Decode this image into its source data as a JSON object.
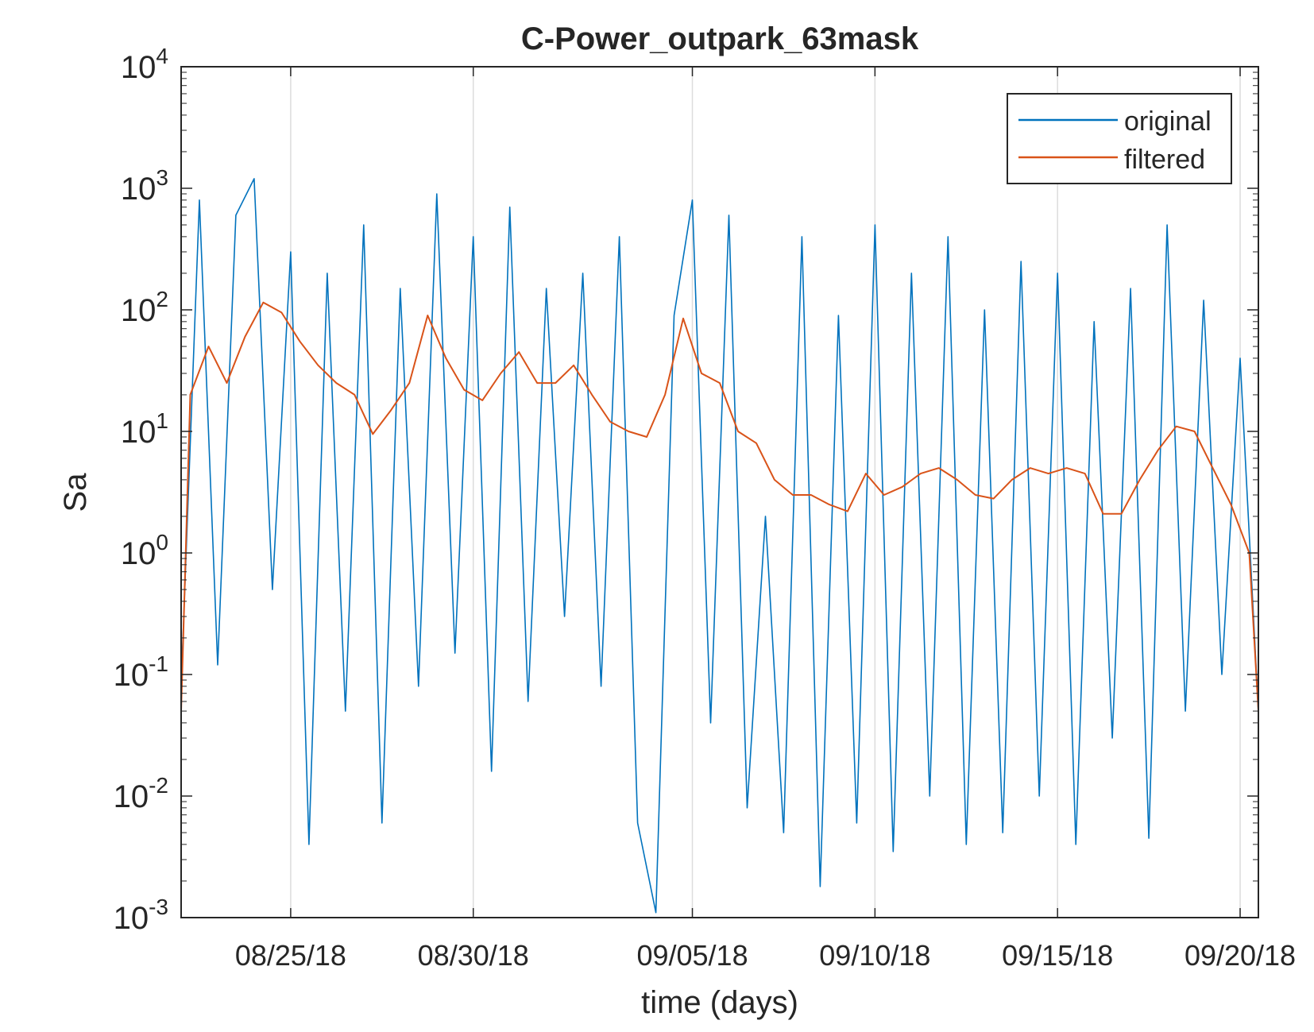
{
  "chart_data": {
    "type": "line",
    "title": "C-Power_outpark_63mask",
    "xlabel": "time (days)",
    "ylabel": "Sa",
    "yscale": "log",
    "ylim": [
      0.001,
      10000
    ],
    "xlim": [
      "2018-08-22T00:00",
      "2018-09-20T12:00"
    ],
    "y_ticks": [
      {
        "base": "10",
        "exp": "-3"
      },
      {
        "base": "10",
        "exp": "-2"
      },
      {
        "base": "10",
        "exp": "-1"
      },
      {
        "base": "10",
        "exp": "0"
      },
      {
        "base": "10",
        "exp": "1"
      },
      {
        "base": "10",
        "exp": "2"
      },
      {
        "base": "10",
        "exp": "3"
      },
      {
        "base": "10",
        "exp": "4"
      }
    ],
    "x_ticks": [
      {
        "date": "2018-08-25",
        "label": "08/25/18"
      },
      {
        "date": "2018-08-30",
        "label": "08/30/18"
      },
      {
        "date": "2018-09-05",
        "label": "09/05/18"
      },
      {
        "date": "2018-09-10",
        "label": "09/10/18"
      },
      {
        "date": "2018-09-15",
        "label": "09/15/18"
      },
      {
        "date": "2018-09-20",
        "label": "09/20/18"
      }
    ],
    "grid": "vertical",
    "legend_position": "top-right",
    "series": [
      {
        "name": "original",
        "color": "#0072BD",
        "x": [
          "2018-08-22T00:00",
          "2018-08-22T12:00",
          "2018-08-23T00:00",
          "2018-08-23T12:00",
          "2018-08-24T00:00",
          "2018-08-24T12:00",
          "2018-08-25T00:00",
          "2018-08-25T12:00",
          "2018-08-26T00:00",
          "2018-08-26T12:00",
          "2018-08-27T00:00",
          "2018-08-27T12:00",
          "2018-08-28T00:00",
          "2018-08-28T12:00",
          "2018-08-29T00:00",
          "2018-08-29T12:00",
          "2018-08-30T00:00",
          "2018-08-30T12:00",
          "2018-08-31T00:00",
          "2018-08-31T12:00",
          "2018-09-01T00:00",
          "2018-09-01T12:00",
          "2018-09-02T00:00",
          "2018-09-02T12:00",
          "2018-09-03T00:00",
          "2018-09-03T12:00",
          "2018-09-04T00:00",
          "2018-09-04T12:00",
          "2018-09-05T00:00",
          "2018-09-05T12:00",
          "2018-09-06T00:00",
          "2018-09-06T12:00",
          "2018-09-07T00:00",
          "2018-09-07T12:00",
          "2018-09-08T00:00",
          "2018-09-08T12:00",
          "2018-09-09T00:00",
          "2018-09-09T12:00",
          "2018-09-10T00:00",
          "2018-09-10T12:00",
          "2018-09-11T00:00",
          "2018-09-11T12:00",
          "2018-09-12T00:00",
          "2018-09-12T12:00",
          "2018-09-13T00:00",
          "2018-09-13T12:00",
          "2018-09-14T00:00",
          "2018-09-14T12:00",
          "2018-09-15T00:00",
          "2018-09-15T12:00",
          "2018-09-16T00:00",
          "2018-09-16T12:00",
          "2018-09-17T00:00",
          "2018-09-17T12:00",
          "2018-09-18T00:00",
          "2018-09-18T12:00",
          "2018-09-19T00:00",
          "2018-09-19T12:00",
          "2018-09-20T00:00",
          "2018-09-20T12:00"
        ],
        "y": [
          0.08,
          800,
          0.12,
          600,
          1200,
          0.5,
          300,
          0.004,
          200,
          0.05,
          500,
          0.006,
          150,
          0.08,
          900,
          0.15,
          400,
          0.016,
          700,
          0.06,
          150,
          0.3,
          200,
          0.08,
          400,
          0.006,
          0.0011,
          90,
          800,
          0.04,
          600,
          0.008,
          2,
          0.005,
          400,
          0.0018,
          90,
          0.006,
          500,
          0.0035,
          200,
          0.01,
          400,
          0.004,
          100,
          0.005,
          250,
          0.01,
          200,
          0.004,
          80,
          0.03,
          150,
          0.0045,
          500,
          0.05,
          120,
          0.1,
          40,
          0.05
        ]
      },
      {
        "name": "filtered",
        "color": "#D95319",
        "x": [
          "2018-08-22T00:00",
          "2018-08-22T06:00",
          "2018-08-22T18:00",
          "2018-08-23T06:00",
          "2018-08-23T18:00",
          "2018-08-24T06:00",
          "2018-08-24T18:00",
          "2018-08-25T06:00",
          "2018-08-25T18:00",
          "2018-08-26T06:00",
          "2018-08-26T18:00",
          "2018-08-27T06:00",
          "2018-08-27T18:00",
          "2018-08-28T06:00",
          "2018-08-28T18:00",
          "2018-08-29T06:00",
          "2018-08-29T18:00",
          "2018-08-30T06:00",
          "2018-08-30T18:00",
          "2018-08-31T06:00",
          "2018-08-31T18:00",
          "2018-09-01T06:00",
          "2018-09-01T18:00",
          "2018-09-02T06:00",
          "2018-09-02T18:00",
          "2018-09-03T06:00",
          "2018-09-03T18:00",
          "2018-09-04T06:00",
          "2018-09-04T18:00",
          "2018-09-05T06:00",
          "2018-09-05T18:00",
          "2018-09-06T06:00",
          "2018-09-06T18:00",
          "2018-09-07T06:00",
          "2018-09-07T18:00",
          "2018-09-08T06:00",
          "2018-09-08T18:00",
          "2018-09-09T06:00",
          "2018-09-09T18:00",
          "2018-09-10T06:00",
          "2018-09-10T18:00",
          "2018-09-11T06:00",
          "2018-09-11T18:00",
          "2018-09-12T06:00",
          "2018-09-12T18:00",
          "2018-09-13T06:00",
          "2018-09-13T18:00",
          "2018-09-14T06:00",
          "2018-09-14T18:00",
          "2018-09-15T06:00",
          "2018-09-15T18:00",
          "2018-09-16T06:00",
          "2018-09-16T18:00",
          "2018-09-17T06:00",
          "2018-09-17T18:00",
          "2018-09-18T06:00",
          "2018-09-18T18:00",
          "2018-09-19T06:00",
          "2018-09-19T18:00",
          "2018-09-20T06:00",
          "2018-09-20T12:00"
        ],
        "y": [
          0.05,
          20,
          50,
          25,
          60,
          115,
          95,
          55,
          35,
          25,
          20,
          9.5,
          15,
          25,
          90,
          40,
          22,
          18,
          30,
          45,
          25,
          25,
          35,
          20,
          12,
          10,
          9,
          20,
          85,
          30,
          25,
          10,
          8,
          4,
          3,
          3,
          2.5,
          2.2,
          4.5,
          3,
          3.5,
          4.5,
          5,
          4,
          3,
          2.8,
          4,
          5,
          4.5,
          5,
          4.5,
          2.1,
          2.1,
          4,
          7,
          11,
          10,
          5,
          2.5,
          1,
          0.05
        ]
      }
    ]
  }
}
